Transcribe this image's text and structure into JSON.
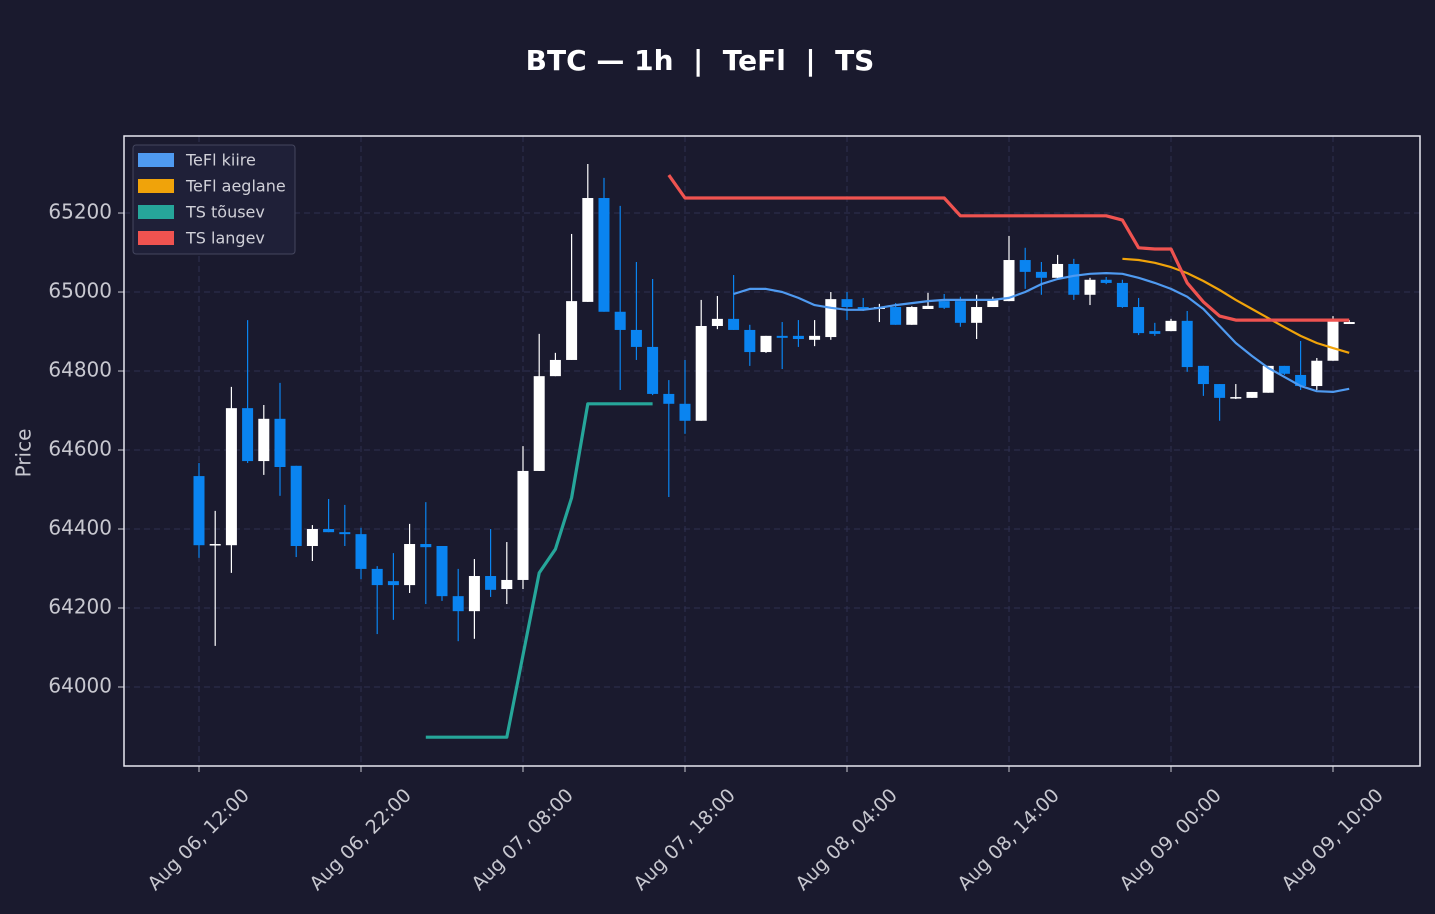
{
  "chart_data": {
    "type": "candlestick",
    "title": "BTC — 1h  |  TeFl  |  TS",
    "y_label": "Price",
    "x": [
      "Aug 06, 12:00",
      "Aug 06, 13:00",
      "Aug 06, 14:00",
      "Aug 06, 15:00",
      "Aug 06, 16:00",
      "Aug 06, 17:00",
      "Aug 06, 18:00",
      "Aug 06, 19:00",
      "Aug 06, 20:00",
      "Aug 06, 21:00",
      "Aug 06, 22:00",
      "Aug 06, 23:00",
      "Aug 07, 00:00",
      "Aug 07, 01:00",
      "Aug 07, 02:00",
      "Aug 07, 03:00",
      "Aug 07, 04:00",
      "Aug 07, 05:00",
      "Aug 07, 06:00",
      "Aug 07, 07:00",
      "Aug 07, 08:00",
      "Aug 07, 09:00",
      "Aug 07, 10:00",
      "Aug 07, 11:00",
      "Aug 07, 12:00",
      "Aug 07, 13:00",
      "Aug 07, 14:00",
      "Aug 07, 15:00",
      "Aug 07, 16:00",
      "Aug 07, 17:00",
      "Aug 07, 18:00",
      "Aug 07, 19:00",
      "Aug 07, 20:00",
      "Aug 07, 21:00",
      "Aug 07, 22:00",
      "Aug 07, 23:00",
      "Aug 08, 00:00",
      "Aug 08, 01:00",
      "Aug 08, 02:00",
      "Aug 08, 03:00",
      "Aug 08, 04:00",
      "Aug 08, 05:00",
      "Aug 08, 06:00",
      "Aug 08, 07:00",
      "Aug 08, 08:00",
      "Aug 08, 09:00",
      "Aug 08, 10:00",
      "Aug 08, 11:00",
      "Aug 08, 12:00",
      "Aug 08, 13:00",
      "Aug 08, 14:00",
      "Aug 08, 15:00",
      "Aug 08, 16:00",
      "Aug 08, 17:00",
      "Aug 08, 18:00",
      "Aug 08, 19:00",
      "Aug 08, 20:00",
      "Aug 08, 21:00",
      "Aug 08, 22:00",
      "Aug 08, 23:00",
      "Aug 09, 00:00",
      "Aug 09, 01:00",
      "Aug 09, 02:00",
      "Aug 09, 03:00",
      "Aug 09, 04:00",
      "Aug 09, 05:00",
      "Aug 09, 06:00",
      "Aug 09, 07:00",
      "Aug 09, 08:00",
      "Aug 09, 09:00",
      "Aug 09, 10:00",
      "Aug 09, 11:00"
    ],
    "open": [
      64534,
      64360,
      64359,
      64706,
      64572,
      64679,
      64560,
      64357,
      64400,
      64392,
      64387,
      64299,
      64268,
      64258,
      64362,
      64357,
      64230,
      64192,
      64281,
      64248,
      64271,
      64547,
      64787,
      64828,
      64975,
      65238,
      64950,
      64904,
      64861,
      64742,
      64717,
      64674,
      64914,
      64932,
      64904,
      64848,
      64889,
      64889,
      64879,
      64886,
      64982,
      64962,
      64957,
      64962,
      64917,
      64957,
      64977,
      64977,
      64922,
      64962,
      64977,
      65081,
      65051,
      65036,
      65071,
      64993,
      65031,
      65023,
      64962,
      64901,
      64901,
      64927,
      64813,
      64767,
      64732,
      64732,
      64745,
      64813,
      64790,
      64762,
      64826,
      64919
    ],
    "high": [
      64567,
      64446,
      64760,
      64929,
      64714,
      64770,
      64560,
      64410,
      64476,
      64461,
      64403,
      64306,
      64339,
      64413,
      64468,
      64357,
      64299,
      64324,
      64400,
      64367,
      64610,
      64894,
      64846,
      65147,
      65324,
      65289,
      65218,
      65076,
      65033,
      64777,
      64828,
      64980,
      64990,
      65043,
      64917,
      64889,
      64924,
      64929,
      64929,
      65000,
      65000,
      64985,
      64970,
      64972,
      64964,
      64998,
      64995,
      64988,
      64993,
      64988,
      65142,
      65112,
      65076,
      65094,
      65084,
      65036,
      65038,
      65031,
      64985,
      64922,
      64932,
      64952,
      64813,
      64767,
      64767,
      64747,
      64813,
      64813,
      64876,
      64833,
      64939,
      64929
    ],
    "low": [
      64327,
      64104,
      64289,
      64567,
      64537,
      64484,
      64329,
      64319,
      64392,
      64357,
      64273,
      64134,
      64170,
      64238,
      64210,
      64218,
      64116,
      64122,
      64228,
      64210,
      64248,
      64547,
      64787,
      64828,
      64975,
      64950,
      64752,
      64828,
      64739,
      64481,
      64641,
      64674,
      64906,
      64904,
      64813,
      64846,
      64805,
      64861,
      64863,
      64879,
      64929,
      64952,
      64924,
      64917,
      64917,
      64957,
      64957,
      64912,
      64881,
      64962,
      64977,
      65008,
      64993,
      65033,
      64980,
      64967,
      65020,
      64960,
      64891,
      64889,
      64901,
      64798,
      64737,
      64674,
      64729,
      64732,
      64745,
      64790,
      64752,
      64752,
      64826,
      64919
    ],
    "close": [
      64359,
      64362,
      64706,
      64572,
      64679,
      64557,
      64357,
      64400,
      64392,
      64387,
      64299,
      64258,
      64258,
      64362,
      64354,
      64230,
      64192,
      64281,
      64246,
      64271,
      64547,
      64787,
      64828,
      64977,
      65238,
      64950,
      64904,
      64861,
      64742,
      64717,
      64674,
      64914,
      64932,
      64904,
      64848,
      64889,
      64884,
      64881,
      64889,
      64982,
      64962,
      64957,
      64962,
      64917,
      64962,
      64965,
      64960,
      64922,
      64962,
      64980,
      65081,
      65051,
      65036,
      65071,
      64993,
      65031,
      65023,
      64962,
      64896,
      64894,
      64927,
      64810,
      64767,
      64732,
      64734,
      64747,
      64813,
      64793,
      64762,
      64826,
      64927,
      64924
    ],
    "up_color": "#ffffff",
    "down_color": "#0a84f0",
    "series": [
      {
        "name": "TeFl kiire",
        "color": "#4f9af0",
        "values": [
          null,
          null,
          null,
          null,
          null,
          null,
          null,
          null,
          null,
          null,
          null,
          null,
          null,
          null,
          null,
          null,
          null,
          null,
          null,
          null,
          null,
          null,
          null,
          null,
          null,
          null,
          null,
          null,
          null,
          null,
          null,
          null,
          null,
          64995,
          65008,
          65008,
          65000,
          64985,
          64967,
          64960,
          64955,
          64955,
          64960,
          64967,
          64972,
          64977,
          64980,
          64980,
          64980,
          64980,
          64985,
          65000,
          65020,
          65033,
          65041,
          65046,
          65048,
          65046,
          65036,
          65023,
          65008,
          64988,
          64957,
          64914,
          64871,
          64838,
          64808,
          64785,
          64762,
          64749,
          64747,
          64755
        ]
      },
      {
        "name": "TeFl aeglane",
        "color": "#f0a30a",
        "values": [
          null,
          null,
          null,
          null,
          null,
          null,
          null,
          null,
          null,
          null,
          null,
          null,
          null,
          null,
          null,
          null,
          null,
          null,
          null,
          null,
          null,
          null,
          null,
          null,
          null,
          null,
          null,
          null,
          null,
          null,
          null,
          null,
          null,
          null,
          null,
          null,
          null,
          null,
          null,
          null,
          null,
          null,
          null,
          null,
          null,
          null,
          null,
          null,
          null,
          null,
          null,
          null,
          null,
          null,
          null,
          null,
          null,
          65084,
          65081,
          65074,
          65063,
          65048,
          65028,
          65005,
          64980,
          64957,
          64934,
          64911,
          64889,
          64871,
          64858,
          64846
        ]
      },
      {
        "name": "TS tõusev",
        "color": "#26a69a",
        "values": [
          null,
          null,
          null,
          null,
          null,
          null,
          null,
          null,
          null,
          null,
          null,
          null,
          null,
          null,
          63873,
          63873,
          63873,
          63873,
          63873,
          63873,
          64081,
          64289,
          64349,
          64479,
          64717,
          64717,
          64717,
          64717,
          64717,
          null,
          null,
          null,
          null,
          null,
          null,
          null,
          null,
          null,
          null,
          null,
          null,
          null,
          null,
          null,
          null,
          null,
          null,
          null,
          null,
          null,
          null,
          null,
          null,
          null,
          null,
          null,
          null,
          null,
          null,
          null,
          null,
          null,
          null,
          null,
          null,
          null,
          null,
          null,
          null,
          null,
          null,
          null
        ]
      },
      {
        "name": "TS langev",
        "color": "#ef5350",
        "values": [
          null,
          null,
          null,
          null,
          null,
          null,
          null,
          null,
          null,
          null,
          null,
          null,
          null,
          null,
          null,
          null,
          null,
          null,
          null,
          null,
          null,
          null,
          null,
          null,
          null,
          null,
          null,
          null,
          null,
          65296,
          65238,
          65238,
          65238,
          65238,
          65238,
          65238,
          65238,
          65238,
          65238,
          65238,
          65238,
          65238,
          65238,
          65238,
          65238,
          65238,
          65238,
          65193,
          65193,
          65193,
          65193,
          65193,
          65193,
          65193,
          65193,
          65193,
          65193,
          65182,
          65112,
          65109,
          65109,
          65023,
          64975,
          64939,
          64929,
          64929,
          64929,
          64929,
          64929,
          64929,
          64929,
          64929
        ]
      }
    ],
    "ylim": [
      63800,
      65395
    ],
    "yticks": [
      64000,
      64200,
      64400,
      64600,
      64800,
      65000,
      65200
    ],
    "xticks": [
      "Aug 06, 12:00",
      "Aug 06, 22:00",
      "Aug 07, 08:00",
      "Aug 07, 18:00",
      "Aug 08, 04:00",
      "Aug 08, 14:00",
      "Aug 09, 00:00",
      "Aug 09, 10:00"
    ],
    "grid": true,
    "legend": "upper left"
  }
}
